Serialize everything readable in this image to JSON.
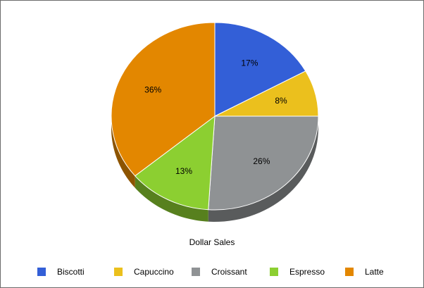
{
  "chart_data": {
    "type": "pie",
    "title": "Dollar Sales",
    "legend_position": "bottom",
    "three_d": true,
    "slices": [
      {
        "label": "Biscotti",
        "value": 17,
        "display": "17%",
        "color": "#335fd7"
      },
      {
        "label": "Capuccino",
        "value": 8,
        "display": "8%",
        "color": "#ebc01d"
      },
      {
        "label": "Croissant",
        "value": 26,
        "display": "26%",
        "color": "#8f9294"
      },
      {
        "label": "Espresso",
        "value": 13,
        "display": "13%",
        "color": "#8ccf31"
      },
      {
        "label": "Latte",
        "value": 36,
        "display": "36%",
        "color": "#e38700"
      }
    ]
  }
}
